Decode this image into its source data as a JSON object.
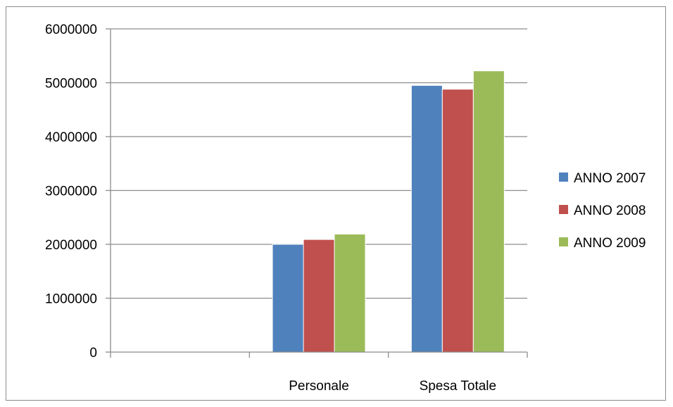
{
  "chart_data": {
    "type": "bar",
    "title": "",
    "xlabel": "",
    "ylabel": "",
    "categories": [
      "",
      "Personale",
      "Spesa Totale"
    ],
    "series": [
      {
        "name": "ANNO 2007",
        "color": "#4f81bd",
        "values": [
          null,
          2000000,
          4950000
        ]
      },
      {
        "name": "ANNO 2008",
        "color": "#c0504d",
        "values": [
          null,
          2090000,
          4880000
        ]
      },
      {
        "name": "ANNO 2009",
        "color": "#9bbb59",
        "values": [
          null,
          2190000,
          5220000
        ]
      }
    ],
    "ylim": [
      0,
      6000000
    ],
    "yticks": [
      "0",
      "1000000",
      "2000000",
      "3000000",
      "4000000",
      "5000000",
      "6000000"
    ],
    "grid": true,
    "legend_position": "right"
  }
}
